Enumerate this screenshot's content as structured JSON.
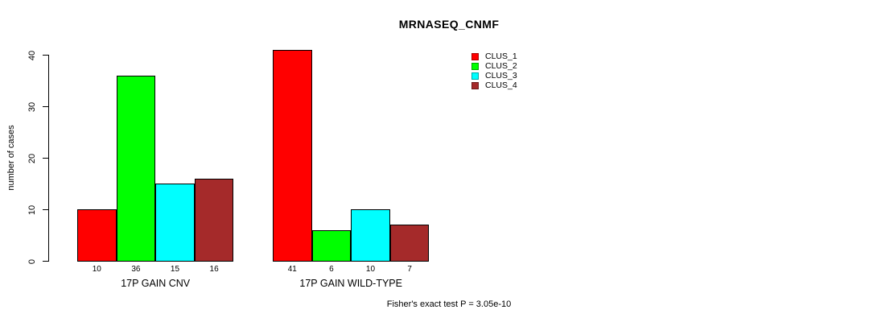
{
  "chart_data": {
    "type": "bar",
    "title": "MRNASEQ_CNMF",
    "ylabel": "number of cases",
    "ylim": [
      0,
      40
    ],
    "yticks": [
      0,
      10,
      20,
      30,
      40
    ],
    "groups": [
      "17P GAIN CNV",
      "17P GAIN WILD-TYPE"
    ],
    "series": [
      {
        "name": "CLUS_1",
        "color": "#FF0000",
        "values": [
          10,
          41
        ]
      },
      {
        "name": "CLUS_2",
        "color": "#00FF00",
        "values": [
          36,
          6
        ]
      },
      {
        "name": "CLUS_3",
        "color": "#00FFFF",
        "values": [
          15,
          10
        ]
      },
      {
        "name": "CLUS_4",
        "color": "#A52A2A",
        "values": [
          16,
          7
        ]
      }
    ],
    "bar_value_labels": [
      [
        10,
        36,
        15,
        16
      ],
      [
        41,
        6,
        10,
        7
      ]
    ],
    "legend_position": "top-right",
    "grid": false,
    "annotation": "Fisher's exact test P = 3.05e-10"
  },
  "colors": {
    "axis": "#000000",
    "background": "#FFFFFF",
    "clus_1": "#FF0000",
    "clus_2": "#00FF00",
    "clus_3": "#00FFFF",
    "clus_4": "#A52A2A"
  }
}
